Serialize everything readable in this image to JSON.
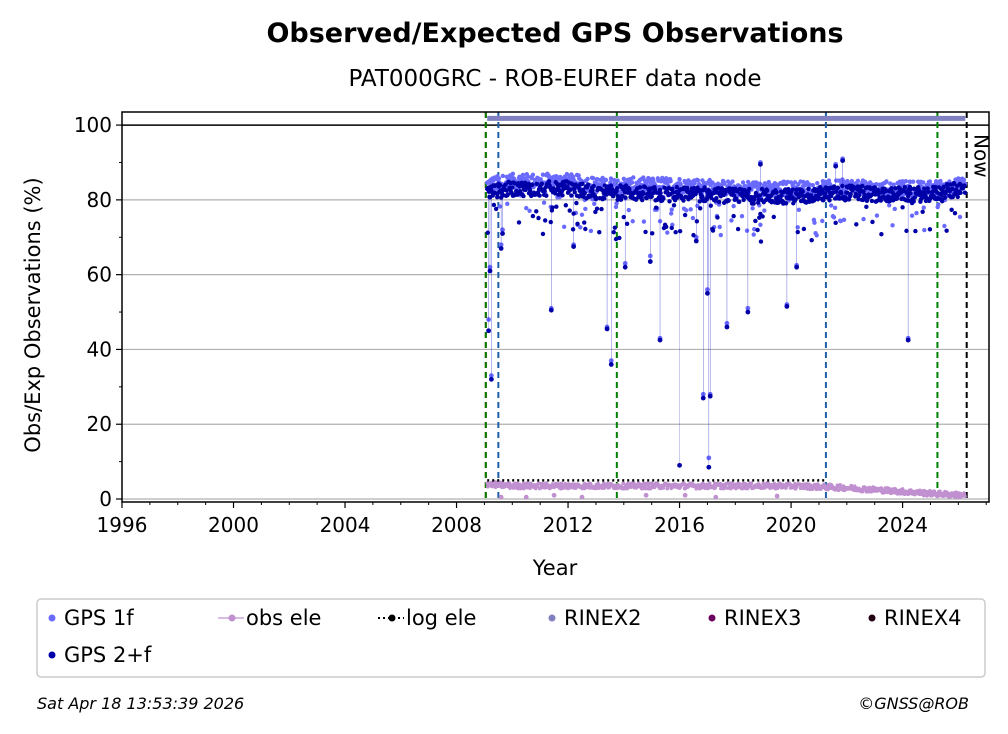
{
  "chart_data": {
    "type": "scatter",
    "title": "Observed/Expected GPS Observations",
    "subtitle": "PAT000GRC - ROB-EUREF data node",
    "xlabel": "Year",
    "ylabel": "Obs/Exp Observations (%)",
    "xlim": [
      1996,
      2027.1
    ],
    "ylim": [
      -0.8,
      103.5
    ],
    "xticks": [
      "1996",
      "2000",
      "2004",
      "2008",
      "2012",
      "2016",
      "2020",
      "2024"
    ],
    "xtick_values": [
      1996,
      2000,
      2004,
      2008,
      2012,
      2016,
      2020,
      2024
    ],
    "yticks": [
      "0",
      "20",
      "40",
      "60",
      "80",
      "100"
    ],
    "ytick_values": [
      0,
      20,
      40,
      60,
      80,
      100
    ],
    "grid": "horizontal",
    "reference_line_y": 100,
    "now_label": "Now",
    "now_year": 2026.3,
    "data_start_year": 2009.05,
    "vlines": [
      {
        "year": 2009.05,
        "color": "#c00000",
        "style": "dashed"
      },
      {
        "year": 2009.05,
        "color": "#008000",
        "style": "dashed"
      },
      {
        "year": 2009.5,
        "color": "#1f5fa8",
        "style": "dashed"
      },
      {
        "year": 2013.75,
        "color": "#008000",
        "style": "dashed"
      },
      {
        "year": 2021.25,
        "color": "#1f5fa8",
        "style": "dashed"
      },
      {
        "year": 2025.25,
        "color": "#008000",
        "style": "dashed"
      },
      {
        "year": 2026.3,
        "color": "#000000",
        "style": "dashed"
      }
    ],
    "series": [
      {
        "name": "GPS 1f",
        "color": "#6a6aff",
        "marker": "dot",
        "baseline": [
          [
            2009.1,
            84
          ],
          [
            2010,
            85
          ],
          [
            2011,
            85
          ],
          [
            2012,
            85
          ],
          [
            2013,
            84
          ],
          [
            2014,
            84
          ],
          [
            2015,
            84
          ],
          [
            2016,
            84
          ],
          [
            2017,
            83.5
          ],
          [
            2018,
            83
          ],
          [
            2019,
            83
          ],
          [
            2020,
            83
          ],
          [
            2021,
            83
          ],
          [
            2022,
            83.5
          ],
          [
            2023,
            83
          ],
          [
            2024,
            83
          ],
          [
            2025,
            83
          ],
          [
            2026.25,
            84
          ]
        ],
        "points": [
          [
            2009.15,
            48
          ],
          [
            2009.2,
            62
          ],
          [
            2009.25,
            33
          ],
          [
            2009.6,
            68
          ],
          [
            2009.65,
            72
          ],
          [
            2011.4,
            51
          ],
          [
            2012.2,
            68
          ],
          [
            2013.4,
            46
          ],
          [
            2013.55,
            37
          ],
          [
            2014.05,
            63
          ],
          [
            2014.95,
            65
          ],
          [
            2015.3,
            43
          ],
          [
            2016.6,
            70
          ],
          [
            2016.85,
            28
          ],
          [
            2017.0,
            56
          ],
          [
            2017.05,
            11
          ],
          [
            2017.1,
            28
          ],
          [
            2017.7,
            47
          ],
          [
            2018.45,
            51
          ],
          [
            2018.9,
            90
          ],
          [
            2019.85,
            52
          ],
          [
            2020.2,
            62.5
          ],
          [
            2021.6,
            89.5
          ],
          [
            2021.85,
            91
          ],
          [
            2024.2,
            43
          ]
        ]
      },
      {
        "name": "GPS 2+f",
        "color": "#0000a8",
        "marker": "dot",
        "baseline": [
          [
            2009.1,
            82
          ],
          [
            2010,
            83
          ],
          [
            2011,
            83
          ],
          [
            2012,
            83
          ],
          [
            2013,
            82
          ],
          [
            2014,
            82
          ],
          [
            2015,
            81.5
          ],
          [
            2016,
            81.5
          ],
          [
            2017,
            81.5
          ],
          [
            2018,
            81
          ],
          [
            2019,
            81
          ],
          [
            2020,
            81
          ],
          [
            2021,
            81.5
          ],
          [
            2022,
            82
          ],
          [
            2023,
            81.5
          ],
          [
            2024,
            81.5
          ],
          [
            2025,
            81.5
          ],
          [
            2026.25,
            83
          ]
        ],
        "points": [
          [
            2009.15,
            45
          ],
          [
            2009.2,
            61
          ],
          [
            2009.25,
            32
          ],
          [
            2009.6,
            67
          ],
          [
            2009.65,
            71
          ],
          [
            2011.4,
            50.5
          ],
          [
            2012.2,
            67.5
          ],
          [
            2013.4,
            45.5
          ],
          [
            2013.55,
            36
          ],
          [
            2014.05,
            62
          ],
          [
            2014.95,
            63.5
          ],
          [
            2015.3,
            42.5
          ],
          [
            2016.6,
            69
          ],
          [
            2016.85,
            27
          ],
          [
            2017.0,
            55
          ],
          [
            2017.05,
            8.5
          ],
          [
            2017.1,
            27.5
          ],
          [
            2017.7,
            46
          ],
          [
            2018.45,
            50
          ],
          [
            2018.9,
            89.5
          ],
          [
            2019.85,
            51.5
          ],
          [
            2020.2,
            62
          ],
          [
            2021.6,
            89
          ],
          [
            2021.85,
            90.5
          ],
          [
            2024.2,
            42.5
          ],
          [
            2016.0,
            9
          ]
        ]
      },
      {
        "name": "obs ele",
        "color": "#c090d0",
        "marker": "dot-line",
        "baseline": [
          [
            2009.1,
            4
          ],
          [
            2010,
            3.5
          ],
          [
            2012,
            3.5
          ],
          [
            2014,
            3.5
          ],
          [
            2016,
            3.5
          ],
          [
            2018,
            3.5
          ],
          [
            2020,
            3.5
          ],
          [
            2021.3,
            3.2
          ],
          [
            2022,
            3
          ],
          [
            2023,
            2.5
          ],
          [
            2024,
            2
          ],
          [
            2025,
            1.5
          ],
          [
            2026.25,
            1
          ]
        ],
        "points": [
          [
            2009.6,
            0.5
          ],
          [
            2010.5,
            0.5
          ],
          [
            2011.5,
            1
          ],
          [
            2012.5,
            0.5
          ],
          [
            2014.8,
            1
          ],
          [
            2016.2,
            1
          ],
          [
            2017.3,
            0.5
          ],
          [
            2019.5,
            0.8
          ]
        ]
      },
      {
        "name": "log ele",
        "color": "#000000",
        "marker": "dot-dotted",
        "segments": [
          [
            2009.1,
            5
          ],
          [
            2021.25,
            5
          ]
        ]
      },
      {
        "name": "RINEX2",
        "color": "#8080c0",
        "marker": "dot",
        "segments": [
          [
            2009.1,
            101.8
          ],
          [
            2026.25,
            101.8
          ]
        ]
      },
      {
        "name": "RINEX3",
        "color": "#6a0060",
        "marker": "dot",
        "segments": []
      },
      {
        "name": "RINEX4",
        "color": "#200010",
        "marker": "dot",
        "segments": []
      }
    ],
    "legend": {
      "placement": "bottom",
      "entries": [
        "GPS 1f",
        "obs ele",
        "log ele",
        "RINEX2",
        "RINEX3",
        "RINEX4",
        "GPS 2+f"
      ]
    }
  },
  "footer": {
    "timestamp": "Sat Apr 18 13:53:39 2026",
    "copyright": "©GNSS@ROB"
  }
}
